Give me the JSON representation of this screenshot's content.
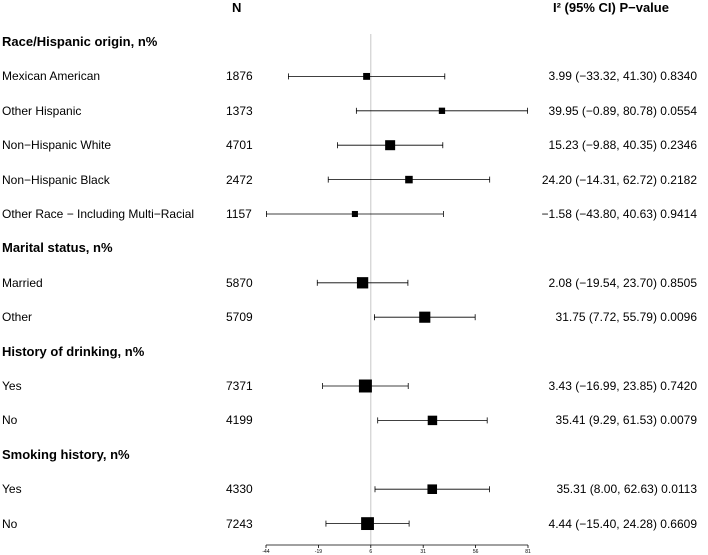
{
  "header": {
    "n_label": "N",
    "stat_label": "I² (95% CI) P−value"
  },
  "chart_data": {
    "type": "forest",
    "xlim": [
      -44,
      81
    ],
    "xticks": [
      -44,
      -19,
      6,
      31,
      56,
      81
    ],
    "reference_line": 6,
    "rows": [
      {
        "kind": "group",
        "label": "Race/Hispanic origin, n%"
      },
      {
        "kind": "item",
        "label": "Mexican American",
        "n": "1876",
        "estimate": 3.99,
        "lower": -33.32,
        "upper": 41.3,
        "stat": "3.99 (−33.32, 41.30) 0.8340"
      },
      {
        "kind": "item",
        "label": "Other Hispanic",
        "n": "1373",
        "estimate": 39.95,
        "lower": -0.89,
        "upper": 80.78,
        "stat": "39.95 (−0.89, 80.78) 0.0554"
      },
      {
        "kind": "item",
        "label": "Non−Hispanic White",
        "n": "4701",
        "estimate": 15.23,
        "lower": -9.88,
        "upper": 40.35,
        "stat": "15.23 (−9.88, 40.35) 0.2346"
      },
      {
        "kind": "item",
        "label": "Non−Hispanic Black",
        "n": "2472",
        "estimate": 24.2,
        "lower": -14.31,
        "upper": 62.72,
        "stat": "24.20 (−14.31, 62.72) 0.2182"
      },
      {
        "kind": "item",
        "label": "Other Race − Including Multi−Racial",
        "n": "1157",
        "estimate": -1.58,
        "lower": -43.8,
        "upper": 40.63,
        "stat": "−1.58 (−43.80, 40.63) 0.9414"
      },
      {
        "kind": "group",
        "label": "Marital status, n%"
      },
      {
        "kind": "item",
        "label": "Married",
        "n": "5870",
        "estimate": 2.08,
        "lower": -19.54,
        "upper": 23.7,
        "stat": "2.08 (−19.54, 23.70) 0.8505"
      },
      {
        "kind": "item",
        "label": "Other",
        "n": "5709",
        "estimate": 31.75,
        "lower": 7.72,
        "upper": 55.79,
        "stat": "31.75 (7.72, 55.79) 0.0096"
      },
      {
        "kind": "group",
        "label": "History of drinking, n%"
      },
      {
        "kind": "item",
        "label": "Yes",
        "n": "7371",
        "estimate": 3.43,
        "lower": -16.99,
        "upper": 23.85,
        "stat": "3.43 (−16.99, 23.85) 0.7420"
      },
      {
        "kind": "item",
        "label": "No",
        "n": "4199",
        "estimate": 35.41,
        "lower": 9.29,
        "upper": 61.53,
        "stat": "35.41 (9.29, 61.53) 0.0079"
      },
      {
        "kind": "group",
        "label": "Smoking history, n%"
      },
      {
        "kind": "item",
        "label": "Yes",
        "n": "4330",
        "estimate": 35.31,
        "lower": 8.0,
        "upper": 62.63,
        "stat": "35.31 (8.00, 62.63) 0.0113"
      },
      {
        "kind": "item",
        "label": "No",
        "n": "7243",
        "estimate": 4.44,
        "lower": -15.4,
        "upper": 24.28,
        "stat": "4.44 (−15.40, 24.28) 0.6609"
      }
    ]
  }
}
